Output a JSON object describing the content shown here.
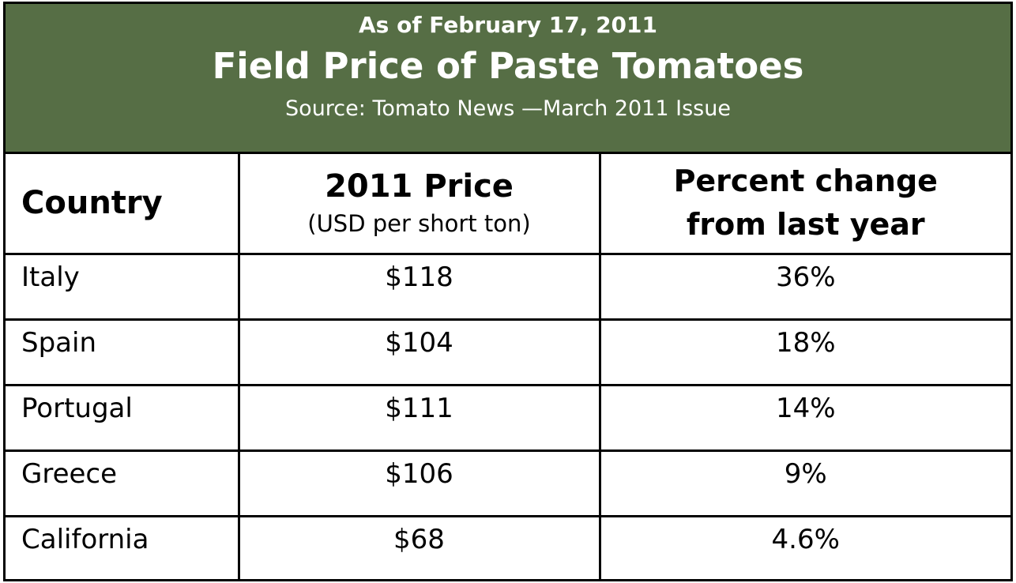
{
  "header": {
    "date": "As of February 17, 2011",
    "title": "Field Price of Paste Tomatoes",
    "source": "Source: Tomato News —March 2011 Issue",
    "bg_color": "#566e45"
  },
  "chart_data": {
    "type": "table",
    "title": "Field Price of Paste Tomatoes",
    "columns": [
      {
        "label": "Country",
        "sublabel": ""
      },
      {
        "label": "2011 Price",
        "sublabel": "(USD per short ton)"
      },
      {
        "label": "Percent change from last year",
        "label_lines": [
          "Percent change",
          "from last year"
        ],
        "sublabel": ""
      }
    ],
    "rows": [
      {
        "country": "Italy",
        "price": "$118",
        "change": "36%"
      },
      {
        "country": "Spain",
        "price": "$104",
        "change": "18%"
      },
      {
        "country": "Portugal",
        "price": "$111",
        "change": "14%"
      },
      {
        "country": "Greece",
        "price": "$106",
        "change": "9%"
      },
      {
        "country": "California",
        "price": "$68",
        "change": "4.6%"
      }
    ],
    "values": {
      "price_usd_per_short_ton": [
        118,
        104,
        111,
        106,
        68
      ],
      "percent_change": [
        36,
        18,
        14,
        9,
        4.6
      ]
    }
  }
}
